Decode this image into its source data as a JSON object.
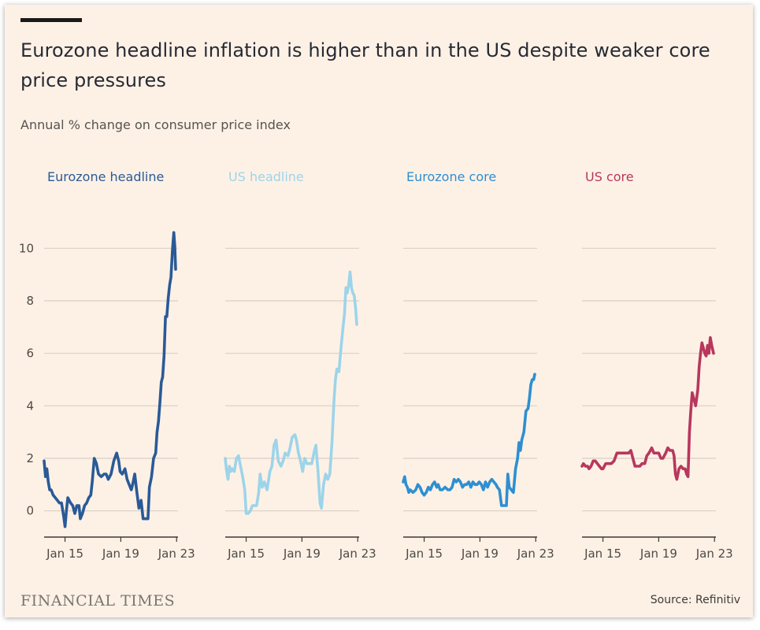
{
  "title": "Eurozone headline inflation is higher than in the US despite weaker core price pressures",
  "subtitle": "Annual % change on consumer price index",
  "footer": {
    "brand": "FINANCIAL TIMES",
    "source": "Source: Refinitiv"
  },
  "colors": {
    "background": "#fdf1e6",
    "grid": "#d9cfc6",
    "text": "#4f4a45"
  },
  "chart_data": {
    "type": "line",
    "ylim": [
      -1,
      11
    ],
    "yticks": [
      0,
      2,
      4,
      6,
      8,
      10
    ],
    "xlim": [
      2013.5,
      2023.1
    ],
    "xticks": [
      {
        "x": 2015,
        "label": "Jan 15"
      },
      {
        "x": 2019,
        "label": "Jan 19"
      },
      {
        "x": 2023,
        "label": "Jan 23"
      }
    ],
    "panels": [
      {
        "name": "Eurozone headline",
        "color": "#2a5a96",
        "points": [
          [
            2013.5,
            1.9
          ],
          [
            2013.6,
            1.3
          ],
          [
            2013.7,
            1.6
          ],
          [
            2013.8,
            1.1
          ],
          [
            2013.9,
            0.8
          ],
          [
            2014.0,
            0.8
          ],
          [
            2014.15,
            0.6
          ],
          [
            2014.3,
            0.5
          ],
          [
            2014.45,
            0.4
          ],
          [
            2014.6,
            0.3
          ],
          [
            2014.75,
            0.3
          ],
          [
            2014.9,
            -0.2
          ],
          [
            2015.0,
            -0.6
          ],
          [
            2015.1,
            0.0
          ],
          [
            2015.2,
            0.5
          ],
          [
            2015.4,
            0.3
          ],
          [
            2015.55,
            0.2
          ],
          [
            2015.7,
            -0.1
          ],
          [
            2015.85,
            0.2
          ],
          [
            2016.0,
            0.2
          ],
          [
            2016.1,
            -0.3
          ],
          [
            2016.25,
            -0.1
          ],
          [
            2016.4,
            0.2
          ],
          [
            2016.55,
            0.3
          ],
          [
            2016.7,
            0.5
          ],
          [
            2016.85,
            0.6
          ],
          [
            2016.95,
            1.1
          ],
          [
            2017.1,
            2.0
          ],
          [
            2017.25,
            1.8
          ],
          [
            2017.4,
            1.4
          ],
          [
            2017.6,
            1.3
          ],
          [
            2017.8,
            1.4
          ],
          [
            2017.95,
            1.4
          ],
          [
            2018.1,
            1.2
          ],
          [
            2018.3,
            1.4
          ],
          [
            2018.5,
            1.9
          ],
          [
            2018.7,
            2.2
          ],
          [
            2018.85,
            1.9
          ],
          [
            2018.95,
            1.5
          ],
          [
            2019.1,
            1.4
          ],
          [
            2019.3,
            1.6
          ],
          [
            2019.45,
            1.2
          ],
          [
            2019.6,
            1.0
          ],
          [
            2019.75,
            0.8
          ],
          [
            2019.85,
            1.0
          ],
          [
            2020.0,
            1.4
          ],
          [
            2020.15,
            0.7
          ],
          [
            2020.3,
            0.1
          ],
          [
            2020.45,
            0.4
          ],
          [
            2020.6,
            -0.3
          ],
          [
            2020.8,
            -0.3
          ],
          [
            2020.95,
            -0.3
          ],
          [
            2021.05,
            0.9
          ],
          [
            2021.2,
            1.3
          ],
          [
            2021.35,
            2.0
          ],
          [
            2021.5,
            2.2
          ],
          [
            2021.6,
            3.0
          ],
          [
            2021.7,
            3.4
          ],
          [
            2021.8,
            4.1
          ],
          [
            2021.9,
            4.9
          ],
          [
            2022.0,
            5.1
          ],
          [
            2022.1,
            5.9
          ],
          [
            2022.2,
            7.4
          ],
          [
            2022.3,
            7.4
          ],
          [
            2022.4,
            8.1
          ],
          [
            2022.5,
            8.6
          ],
          [
            2022.6,
            8.9
          ],
          [
            2022.7,
            9.9
          ],
          [
            2022.8,
            10.6
          ],
          [
            2022.87,
            10.1
          ],
          [
            2022.93,
            9.2
          ]
        ]
      },
      {
        "name": "US headline",
        "color": "#9dd4ea",
        "points": [
          [
            2013.5,
            2.0
          ],
          [
            2013.6,
            1.5
          ],
          [
            2013.7,
            1.2
          ],
          [
            2013.8,
            1.7
          ],
          [
            2013.9,
            1.5
          ],
          [
            2014.0,
            1.6
          ],
          [
            2014.15,
            1.5
          ],
          [
            2014.3,
            2.0
          ],
          [
            2014.45,
            2.1
          ],
          [
            2014.6,
            1.7
          ],
          [
            2014.75,
            1.3
          ],
          [
            2014.9,
            0.8
          ],
          [
            2015.0,
            -0.1
          ],
          [
            2015.15,
            -0.1
          ],
          [
            2015.3,
            0.0
          ],
          [
            2015.45,
            0.2
          ],
          [
            2015.6,
            0.2
          ],
          [
            2015.75,
            0.2
          ],
          [
            2015.9,
            0.7
          ],
          [
            2016.0,
            1.4
          ],
          [
            2016.15,
            0.9
          ],
          [
            2016.3,
            1.1
          ],
          [
            2016.5,
            0.8
          ],
          [
            2016.7,
            1.5
          ],
          [
            2016.85,
            1.7
          ],
          [
            2017.0,
            2.5
          ],
          [
            2017.15,
            2.7
          ],
          [
            2017.3,
            1.9
          ],
          [
            2017.5,
            1.7
          ],
          [
            2017.65,
            1.9
          ],
          [
            2017.8,
            2.2
          ],
          [
            2018.0,
            2.1
          ],
          [
            2018.15,
            2.4
          ],
          [
            2018.3,
            2.8
          ],
          [
            2018.5,
            2.9
          ],
          [
            2018.6,
            2.7
          ],
          [
            2018.75,
            2.2
          ],
          [
            2018.9,
            1.9
          ],
          [
            2019.05,
            1.5
          ],
          [
            2019.2,
            2.0
          ],
          [
            2019.35,
            1.8
          ],
          [
            2019.5,
            1.8
          ],
          [
            2019.7,
            1.8
          ],
          [
            2019.9,
            2.3
          ],
          [
            2020.0,
            2.5
          ],
          [
            2020.15,
            1.5
          ],
          [
            2020.3,
            0.3
          ],
          [
            2020.4,
            0.1
          ],
          [
            2020.55,
            1.0
          ],
          [
            2020.7,
            1.4
          ],
          [
            2020.85,
            1.2
          ],
          [
            2021.0,
            1.4
          ],
          [
            2021.15,
            2.6
          ],
          [
            2021.3,
            4.2
          ],
          [
            2021.4,
            5.0
          ],
          [
            2021.5,
            5.4
          ],
          [
            2021.65,
            5.3
          ],
          [
            2021.8,
            6.2
          ],
          [
            2021.95,
            7.0
          ],
          [
            2022.05,
            7.5
          ],
          [
            2022.15,
            8.5
          ],
          [
            2022.25,
            8.3
          ],
          [
            2022.35,
            8.6
          ],
          [
            2022.45,
            9.1
          ],
          [
            2022.55,
            8.5
          ],
          [
            2022.65,
            8.3
          ],
          [
            2022.75,
            8.2
          ],
          [
            2022.85,
            7.7
          ],
          [
            2022.93,
            7.1
          ]
        ]
      },
      {
        "name": "Eurozone core",
        "color": "#2e8fd0",
        "points": [
          [
            2013.5,
            1.1
          ],
          [
            2013.6,
            1.3
          ],
          [
            2013.7,
            1.0
          ],
          [
            2013.8,
            0.9
          ],
          [
            2013.9,
            0.7
          ],
          [
            2014.0,
            0.8
          ],
          [
            2014.2,
            0.7
          ],
          [
            2014.4,
            0.8
          ],
          [
            2014.55,
            1.0
          ],
          [
            2014.7,
            0.9
          ],
          [
            2014.85,
            0.7
          ],
          [
            2015.0,
            0.6
          ],
          [
            2015.15,
            0.7
          ],
          [
            2015.3,
            0.9
          ],
          [
            2015.45,
            0.8
          ],
          [
            2015.6,
            1.0
          ],
          [
            2015.75,
            1.1
          ],
          [
            2015.9,
            0.9
          ],
          [
            2016.0,
            1.0
          ],
          [
            2016.15,
            0.8
          ],
          [
            2016.3,
            0.8
          ],
          [
            2016.5,
            0.9
          ],
          [
            2016.7,
            0.8
          ],
          [
            2016.85,
            0.8
          ],
          [
            2017.0,
            0.9
          ],
          [
            2017.15,
            1.2
          ],
          [
            2017.3,
            1.1
          ],
          [
            2017.45,
            1.2
          ],
          [
            2017.6,
            1.1
          ],
          [
            2017.75,
            0.9
          ],
          [
            2017.9,
            1.0
          ],
          [
            2018.05,
            1.0
          ],
          [
            2018.2,
            1.1
          ],
          [
            2018.35,
            0.9
          ],
          [
            2018.5,
            1.1
          ],
          [
            2018.65,
            1.0
          ],
          [
            2018.8,
            1.0
          ],
          [
            2018.95,
            1.1
          ],
          [
            2019.1,
            1.0
          ],
          [
            2019.25,
            0.8
          ],
          [
            2019.4,
            1.1
          ],
          [
            2019.55,
            0.9
          ],
          [
            2019.7,
            1.1
          ],
          [
            2019.85,
            1.2
          ],
          [
            2020.0,
            1.1
          ],
          [
            2020.15,
            1.0
          ],
          [
            2020.25,
            0.9
          ],
          [
            2020.4,
            0.8
          ],
          [
            2020.55,
            0.2
          ],
          [
            2020.65,
            0.2
          ],
          [
            2020.75,
            0.2
          ],
          [
            2020.9,
            0.2
          ],
          [
            2021.0,
            1.4
          ],
          [
            2021.1,
            0.9
          ],
          [
            2021.25,
            0.8
          ],
          [
            2021.4,
            0.7
          ],
          [
            2021.55,
            1.6
          ],
          [
            2021.7,
            2.0
          ],
          [
            2021.8,
            2.6
          ],
          [
            2021.9,
            2.3
          ],
          [
            2022.0,
            2.7
          ],
          [
            2022.15,
            3.0
          ],
          [
            2022.3,
            3.8
          ],
          [
            2022.45,
            3.9
          ],
          [
            2022.55,
            4.3
          ],
          [
            2022.65,
            4.8
          ],
          [
            2022.75,
            5.0
          ],
          [
            2022.85,
            5.0
          ],
          [
            2022.93,
            5.2
          ]
        ]
      },
      {
        "name": "US core",
        "color": "#b8375c",
        "points": [
          [
            2013.5,
            1.7
          ],
          [
            2013.6,
            1.8
          ],
          [
            2013.75,
            1.7
          ],
          [
            2013.9,
            1.7
          ],
          [
            2014.0,
            1.6
          ],
          [
            2014.15,
            1.7
          ],
          [
            2014.3,
            1.9
          ],
          [
            2014.45,
            1.9
          ],
          [
            2014.6,
            1.8
          ],
          [
            2014.75,
            1.7
          ],
          [
            2014.9,
            1.6
          ],
          [
            2015.0,
            1.6
          ],
          [
            2015.2,
            1.8
          ],
          [
            2015.4,
            1.8
          ],
          [
            2015.6,
            1.8
          ],
          [
            2015.8,
            1.9
          ],
          [
            2016.0,
            2.2
          ],
          [
            2016.15,
            2.2
          ],
          [
            2016.3,
            2.2
          ],
          [
            2016.5,
            2.2
          ],
          [
            2016.7,
            2.2
          ],
          [
            2016.85,
            2.2
          ],
          [
            2017.0,
            2.3
          ],
          [
            2017.15,
            2.0
          ],
          [
            2017.3,
            1.7
          ],
          [
            2017.5,
            1.7
          ],
          [
            2017.65,
            1.7
          ],
          [
            2017.8,
            1.8
          ],
          [
            2018.0,
            1.8
          ],
          [
            2018.15,
            2.1
          ],
          [
            2018.3,
            2.2
          ],
          [
            2018.5,
            2.4
          ],
          [
            2018.65,
            2.2
          ],
          [
            2018.8,
            2.2
          ],
          [
            2019.0,
            2.2
          ],
          [
            2019.15,
            2.0
          ],
          [
            2019.3,
            2.0
          ],
          [
            2019.5,
            2.2
          ],
          [
            2019.65,
            2.4
          ],
          [
            2019.8,
            2.3
          ],
          [
            2020.0,
            2.3
          ],
          [
            2020.1,
            2.1
          ],
          [
            2020.2,
            1.4
          ],
          [
            2020.3,
            1.2
          ],
          [
            2020.45,
            1.6
          ],
          [
            2020.6,
            1.7
          ],
          [
            2020.75,
            1.6
          ],
          [
            2020.9,
            1.6
          ],
          [
            2021.0,
            1.4
          ],
          [
            2021.1,
            1.3
          ],
          [
            2021.2,
            3.0
          ],
          [
            2021.3,
            3.8
          ],
          [
            2021.4,
            4.5
          ],
          [
            2021.5,
            4.3
          ],
          [
            2021.65,
            4.0
          ],
          [
            2021.8,
            4.6
          ],
          [
            2021.9,
            5.5
          ],
          [
            2022.0,
            6.0
          ],
          [
            2022.1,
            6.4
          ],
          [
            2022.2,
            6.2
          ],
          [
            2022.3,
            6.0
          ],
          [
            2022.4,
            5.9
          ],
          [
            2022.5,
            6.3
          ],
          [
            2022.6,
            6.0
          ],
          [
            2022.7,
            6.6
          ],
          [
            2022.8,
            6.3
          ],
          [
            2022.93,
            6.0
          ]
        ]
      }
    ]
  }
}
